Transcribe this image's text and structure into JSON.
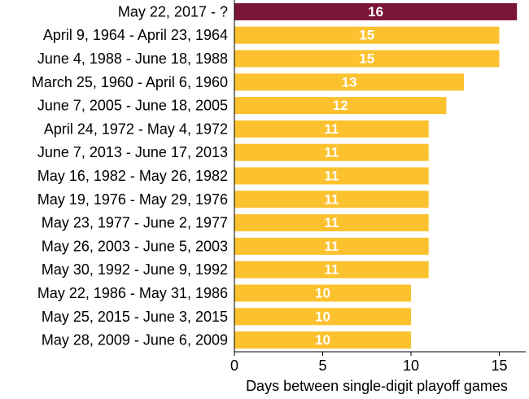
{
  "chart_data": {
    "type": "bar",
    "orientation": "horizontal",
    "categories": [
      "May 22, 2017 - ?",
      "April 9, 1964 - April 23, 1964",
      "June 4, 1988 - June 18, 1988",
      "March 25, 1960 - April 6, 1960",
      "June 7, 2005 - June 18, 2005",
      "April 24, 1972 - May 4, 1972",
      "June 7, 2013 - June 17, 2013",
      "May 16, 1982 - May 26, 1982",
      "May 19, 1976 - May 29, 1976",
      "May 23, 1977 - June 2, 1977",
      "May 26, 2003 - June 5, 2003",
      "May 30, 1992 - June 9, 1992",
      "May 22, 1986 - May 31, 1986",
      "May 25, 2015 - June 3, 2015",
      "May 28, 2009 - June 6, 2009"
    ],
    "values": [
      16,
      15,
      15,
      13,
      12,
      11,
      11,
      11,
      11,
      11,
      11,
      11,
      10,
      10,
      10
    ],
    "data_labels": [
      "16",
      "15",
      "15",
      "13",
      "12",
      "11",
      "11",
      "11",
      "11",
      "11",
      "11",
      "11",
      "10",
      "10",
      "10"
    ],
    "colors": [
      "#7b1535",
      "#fcc12e",
      "#fcc12e",
      "#fcc12e",
      "#fcc12e",
      "#fcc12e",
      "#fcc12e",
      "#fcc12e",
      "#fcc12e",
      "#fcc12e",
      "#fcc12e",
      "#fcc12e",
      "#fcc12e",
      "#fcc12e",
      "#fcc12e"
    ],
    "title": "",
    "xlabel": "Days between single-digit playoff games",
    "ylabel": "",
    "xlim": [
      0,
      16.5
    ],
    "xticks": [
      0,
      5,
      10,
      15
    ],
    "xtick_labels": [
      "0",
      "5",
      "10",
      "15"
    ],
    "grid": false,
    "legend": "none"
  }
}
